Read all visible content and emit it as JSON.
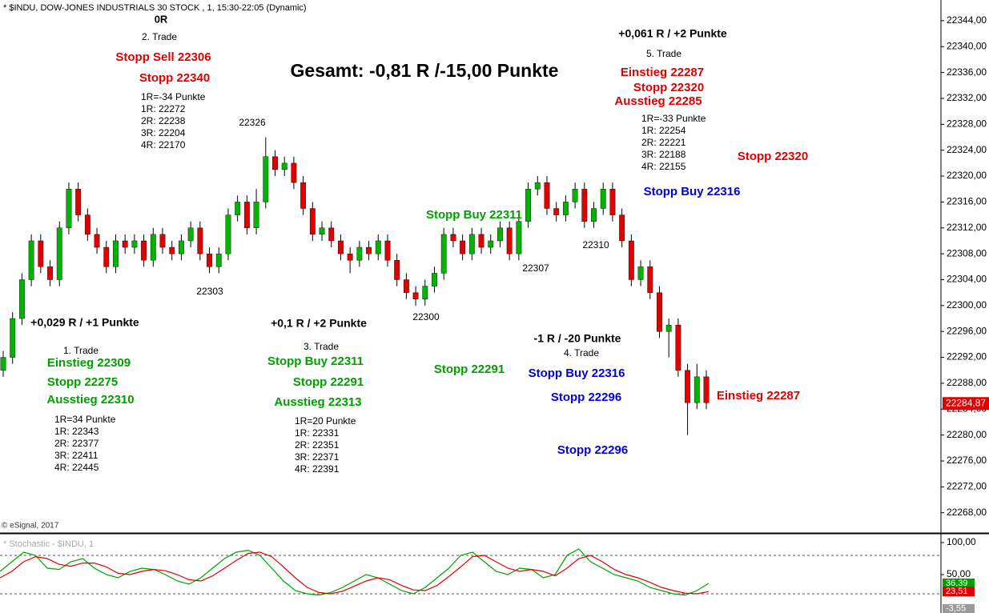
{
  "chart_data": [
    {
      "type": "candlestick",
      "header": "* $INDU, DOW-JONES INDUSTRIALS 30 STOCK , 1, 15:30-22:05 (Dynamic)",
      "title": "Gesamt: -0,81 R /-15,00 Punkte",
      "copyright": "© eSignal, 2017",
      "up_color": "#00b400",
      "down_color": "#e00000",
      "wick_color": "#000000",
      "open": [
        22290,
        22292,
        22298,
        22304,
        22310,
        22306,
        22304,
        22312,
        22318,
        22314,
        22311,
        22309,
        22306,
        22310,
        22309,
        22310,
        22307,
        22311,
        22309,
        22308,
        22310,
        22312,
        22308,
        22306,
        22308,
        22314,
        22316,
        22312,
        22316,
        22323,
        22321,
        22322,
        22319,
        22315,
        22311,
        22312,
        22310,
        22308,
        22307,
        22309,
        22308,
        22310,
        22307,
        22304,
        22302,
        22301,
        22303,
        22305,
        22311,
        22310,
        22308,
        22311,
        22309,
        22310,
        22312,
        22308,
        22313,
        22318,
        22319,
        22315,
        22314,
        22316,
        22318,
        22313,
        22315,
        22318,
        22314,
        22310,
        22304,
        22306,
        22302,
        22296,
        22297,
        22290,
        22285,
        22289
      ],
      "high": [
        22293,
        22299,
        22305,
        22311,
        22311,
        22307,
        22313,
        22319,
        22319,
        22315,
        22312,
        22310,
        22311,
        22311,
        22311,
        22311,
        22312,
        22312,
        22310,
        22311,
        22313,
        22313,
        22309,
        22309,
        22315,
        22317,
        22317,
        22318,
        22326,
        22324,
        22323,
        22323,
        22320,
        22316,
        22313,
        22313,
        22311,
        22309,
        22310,
        22310,
        22311,
        22311,
        22308,
        22305,
        22303,
        22304,
        22306,
        22312,
        22312,
        22311,
        22312,
        22312,
        22311,
        22313,
        22313,
        22314,
        22319,
        22320,
        22320,
        22316,
        22317,
        22319,
        22319,
        22316,
        22319,
        22319,
        22315,
        22311,
        22307,
        22307,
        22303,
        22298,
        22298,
        22291,
        22291,
        22290
      ],
      "low": [
        22289,
        22291,
        22297,
        22303,
        22305,
        22303,
        22303,
        22311,
        22313,
        22310,
        22308,
        22305,
        22305,
        22308,
        22308,
        22306,
        22306,
        22308,
        22307,
        22307,
        22309,
        22307,
        22305,
        22305,
        22307,
        22313,
        22311,
        22311,
        22315,
        22320,
        22320,
        22318,
        22314,
        22310,
        22310,
        22309,
        22307,
        22305,
        22306,
        22307,
        22307,
        22306,
        22303,
        22301,
        22300,
        22300,
        22302,
        22304,
        22309,
        22307,
        22307,
        22308,
        22308,
        22309,
        22307,
        22307,
        22312,
        22317,
        22314,
        22313,
        22313,
        22315,
        22312,
        22312,
        22314,
        22313,
        22309,
        22303,
        22303,
        22301,
        22295,
        22292,
        22289,
        22280,
        22284,
        22284
      ],
      "close": [
        22292,
        22298,
        22304,
        22310,
        22306,
        22304,
        22312,
        22318,
        22314,
        22311,
        22309,
        22306,
        22310,
        22309,
        22310,
        22307,
        22311,
        22309,
        22308,
        22310,
        22312,
        22308,
        22306,
        22308,
        22314,
        22316,
        22312,
        22316,
        22323,
        22321,
        22322,
        22319,
        22315,
        22311,
        22312,
        22310,
        22308,
        22307,
        22309,
        22308,
        22310,
        22307,
        22304,
        22302,
        22301,
        22303,
        22305,
        22311,
        22310,
        22308,
        22311,
        22309,
        22310,
        22312,
        22308,
        22313,
        22318,
        22319,
        22315,
        22314,
        22316,
        22318,
        22313,
        22315,
        22318,
        22314,
        22310,
        22304,
        22306,
        22302,
        22296,
        22297,
        22290,
        22285,
        22289,
        22285
      ],
      "ylim": [
        22265,
        22347.2
      ],
      "yticks": [
        {
          "value": 22268,
          "label": "22268,00"
        },
        {
          "value": 22272,
          "label": "22272,00"
        },
        {
          "value": 22276,
          "label": "22276,00"
        },
        {
          "value": 22280,
          "label": "22280,00"
        },
        {
          "value": 22284,
          "label": "22284,00"
        },
        {
          "value": 22288,
          "label": "22288,00"
        },
        {
          "value": 22292,
          "label": "22292,00"
        },
        {
          "value": 22296,
          "label": "22296,00"
        },
        {
          "value": 22300,
          "label": "22300,00"
        },
        {
          "value": 22304,
          "label": "22304,00"
        },
        {
          "value": 22308,
          "label": "22308,00"
        },
        {
          "value": 22312,
          "label": "22312,00"
        },
        {
          "value": 22316,
          "label": "22316,00"
        },
        {
          "value": 22320,
          "label": "22320,00"
        },
        {
          "value": 22324,
          "label": "22324,00"
        },
        {
          "value": 22328,
          "label": "22328,00"
        },
        {
          "value": 22332,
          "label": "22332,00"
        },
        {
          "value": 22336,
          "label": "22336,00"
        },
        {
          "value": 22340,
          "label": "22340,00"
        },
        {
          "value": 22344,
          "label": "22344,00"
        }
      ],
      "last_price": {
        "value": 22284.87,
        "label": "22284,87",
        "color": "#e00000"
      },
      "annotations": [
        {
          "text": "0R",
          "color": "#000000"
        },
        {
          "text": "2. Trade",
          "color": "#000000"
        },
        {
          "text": "Stopp Sell 22306",
          "color": "#e00000"
        },
        {
          "text": "Stopp 22340",
          "color": "#e00000"
        },
        {
          "text": "1R=-34 Punkte",
          "color": "#000000"
        },
        {
          "text": "1R: 22272",
          "color": "#000000"
        },
        {
          "text": "2R: 22238",
          "color": "#000000"
        },
        {
          "text": "3R: 22204",
          "color": "#000000"
        },
        {
          "text": "4R: 22170",
          "color": "#000000"
        },
        {
          "text": "22326",
          "color": "#000000"
        },
        {
          "text": "22303",
          "color": "#000000"
        },
        {
          "text": "22300",
          "color": "#000000"
        },
        {
          "text": "22307",
          "color": "#000000"
        },
        {
          "text": "22310",
          "color": "#000000"
        },
        {
          "text": "+0,029 R / +1 Punkte",
          "color": "#000000"
        },
        {
          "text": "1. Trade",
          "color": "#000000"
        },
        {
          "text": "Einstieg 22309",
          "color": "#00a000"
        },
        {
          "text": "Stopp 22275",
          "color": "#00a000"
        },
        {
          "text": "Ausstieg 22310",
          "color": "#00a000"
        },
        {
          "text": "1R=34 Punkte",
          "color": "#000000"
        },
        {
          "text": "1R: 22343",
          "color": "#000000"
        },
        {
          "text": "2R: 22377",
          "color": "#000000"
        },
        {
          "text": "3R: 22411",
          "color": "#000000"
        },
        {
          "text": "4R: 22445",
          "color": "#000000"
        },
        {
          "text": "+0,1 R / +2 Punkte",
          "color": "#000000"
        },
        {
          "text": "3. Trade",
          "color": "#000000"
        },
        {
          "text": "Stopp Buy 22311",
          "color": "#00a000"
        },
        {
          "text": "Stopp 22291",
          "color": "#00a000"
        },
        {
          "text": "Ausstieg 22313",
          "color": "#00a000"
        },
        {
          "text": "1R=20 Punkte",
          "color": "#000000"
        },
        {
          "text": "1R: 22331",
          "color": "#000000"
        },
        {
          "text": "2R: 22351",
          "color": "#000000"
        },
        {
          "text": "3R: 22371",
          "color": "#000000"
        },
        {
          "text": "4R: 22391",
          "color": "#000000"
        },
        {
          "text": "Stopp Buy 22311",
          "color": "#00a000"
        },
        {
          "text": "Stopp 22291",
          "color": "#00a000"
        },
        {
          "text": "-1 R / -20 Punkte",
          "color": "#000000"
        },
        {
          "text": "4. Trade",
          "color": "#000000"
        },
        {
          "text": "Stopp Buy 22316",
          "color": "#0000e0"
        },
        {
          "text": "Stopp 22296",
          "color": "#0000e0"
        },
        {
          "text": "Stopp 22296",
          "color": "#0000e0"
        },
        {
          "text": "+0,061 R / +2 Punkte",
          "color": "#000000"
        },
        {
          "text": "5. Trade",
          "color": "#000000"
        },
        {
          "text": "Einstieg 22287",
          "color": "#e00000"
        },
        {
          "text": "Stopp 22320",
          "color": "#e00000"
        },
        {
          "text": "Ausstieg 22285",
          "color": "#e00000"
        },
        {
          "text": "1R=-33 Punkte",
          "color": "#000000"
        },
        {
          "text": "1R: 22254",
          "color": "#000000"
        },
        {
          "text": "2R: 22221",
          "color": "#000000"
        },
        {
          "text": "3R: 22188",
          "color": "#000000"
        },
        {
          "text": "4R: 22155",
          "color": "#000000"
        },
        {
          "text": "Stopp 22320",
          "color": "#e00000"
        },
        {
          "text": "Stopp Buy 22316",
          "color": "#0000e0"
        },
        {
          "text": "Einstieg 22287",
          "color": "#e00000"
        }
      ]
    },
    {
      "type": "line",
      "title": "* Stochastic - $INDU, 1",
      "series": [
        {
          "color": "#00a000",
          "values": [
            55,
            70,
            85,
            80,
            60,
            58,
            70,
            75,
            60,
            50,
            45,
            55,
            60,
            58,
            50,
            40,
            35,
            45,
            60,
            75,
            85,
            88,
            80,
            60,
            40,
            25,
            20,
            18,
            22,
            30,
            40,
            50,
            45,
            35,
            25,
            20,
            30,
            45,
            60,
            80,
            85,
            70,
            55,
            50,
            60,
            58,
            45,
            50,
            80,
            90,
            70,
            60,
            50,
            45,
            40,
            30,
            25,
            20,
            18,
            25,
            36.39
          ],
          "value_label": "36,39"
        },
        {
          "color": "#e00000",
          "values": [
            45,
            55,
            70,
            78,
            75,
            66,
            63,
            68,
            68,
            62,
            52,
            50,
            55,
            58,
            56,
            50,
            42,
            40,
            48,
            60,
            72,
            83,
            85,
            78,
            62,
            45,
            30,
            22,
            20,
            24,
            32,
            40,
            45,
            42,
            33,
            26,
            25,
            33,
            47,
            62,
            78,
            80,
            70,
            60,
            55,
            58,
            55,
            48,
            60,
            75,
            80,
            70,
            58,
            50,
            45,
            38,
            30,
            25,
            21,
            20,
            23.51
          ],
          "value_label": "23,51"
        }
      ],
      "ylim": [
        -10,
        112.5
      ],
      "yticks": [
        {
          "value": 100,
          "label": "100,00"
        },
        {
          "value": 50,
          "label": "50,00"
        }
      ],
      "levels": [
        80,
        20
      ],
      "extra_marker": {
        "value": -3.55,
        "label": "-3,55",
        "color": "#9a9a9a"
      }
    }
  ]
}
